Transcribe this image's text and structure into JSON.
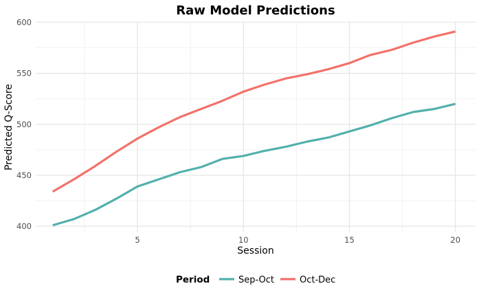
{
  "chart_data": {
    "type": "line",
    "title": "Raw Model Predictions",
    "xlabel": "Session",
    "ylabel": "Predicted Q-Score",
    "xlim": [
      0.2,
      20.95
    ],
    "ylim": [
      394,
      601
    ],
    "x_ticks": [
      5,
      10,
      15,
      20
    ],
    "y_ticks": [
      400,
      450,
      500,
      550,
      600
    ],
    "grid": true,
    "legend_title": "Period",
    "legend_position": "bottom",
    "x": [
      1,
      2,
      3,
      4,
      5,
      6,
      7,
      8,
      9,
      10,
      11,
      12,
      13,
      14,
      15,
      16,
      17,
      18,
      19,
      20
    ],
    "series": [
      {
        "name": "Sep-Oct",
        "color": "#52b0ad",
        "values": [
          401,
          407,
          416,
          427,
          439,
          446,
          453,
          458,
          466,
          469,
          474,
          478,
          483,
          487,
          493,
          499,
          506,
          512,
          515,
          520
        ]
      },
      {
        "name": "Oct-Dec",
        "color": "#f3716a",
        "values": [
          434,
          446,
          459,
          473,
          486,
          497,
          507,
          515,
          523,
          532,
          539,
          545,
          549,
          554,
          560,
          568,
          573,
          580,
          586,
          591
        ]
      }
    ]
  }
}
